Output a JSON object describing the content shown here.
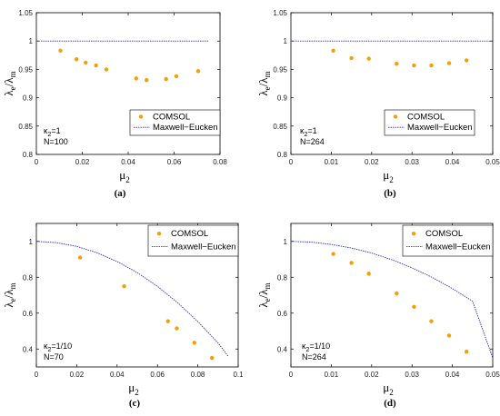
{
  "colors": {
    "comsol": "#F5A000",
    "maxwell": "#2E2ED0",
    "axis": "#000000"
  },
  "chart_data": [
    {
      "type": "scatter",
      "panel_label": "(a)",
      "xlabel": "μ2",
      "ylabel": "λe/λm",
      "xlim": [
        0,
        0.08
      ],
      "ylim": [
        0.8,
        1.05
      ],
      "xticks": [
        0,
        0.02,
        0.04,
        0.06,
        0.08
      ],
      "xtick_labels": [
        "0",
        "0.02",
        "0.04",
        "0.06",
        "0.08"
      ],
      "yticks": [
        0.8,
        0.85,
        0.9,
        0.95,
        1,
        1.05
      ],
      "ytick_labels": [
        "0.8",
        "0.85",
        "0.9",
        "0.95",
        "1",
        "1.05"
      ],
      "legend": {
        "placement": "bottom-right",
        "items": [
          "COMSOL",
          "Maxwell−Eucken"
        ]
      },
      "annotations": [
        {
          "kappa": "κ2=1"
        },
        {
          "text": "N=100"
        }
      ],
      "series": [
        {
          "name": "COMSOL",
          "kind": "points",
          "x": [
            0.0105,
            0.0175,
            0.0215,
            0.026,
            0.0305,
            0.0435,
            0.048,
            0.0565,
            0.061,
            0.0705
          ],
          "y": [
            0.983,
            0.968,
            0.962,
            0.957,
            0.95,
            0.934,
            0.931,
            0.933,
            0.938,
            0.947
          ]
        },
        {
          "name": "Maxwell−Eucken",
          "kind": "line",
          "x": [
            0,
            0.075
          ],
          "y": [
            1.0,
            1.0
          ]
        }
      ]
    },
    {
      "type": "scatter",
      "panel_label": "(b)",
      "xlabel": "μ2",
      "ylabel": "λe/λm",
      "xlim": [
        0,
        0.05
      ],
      "ylim": [
        0.8,
        1.05
      ],
      "xticks": [
        0,
        0.01,
        0.02,
        0.03,
        0.04,
        0.05
      ],
      "xtick_labels": [
        "0",
        "0.01",
        "0.02",
        "0.03",
        "0.04",
        "0.05"
      ],
      "yticks": [
        0.8,
        0.85,
        0.9,
        0.95,
        1,
        1.05
      ],
      "ytick_labels": [
        "0.8",
        "0.85",
        "0.9",
        "0.95",
        "1",
        "1.05"
      ],
      "legend": {
        "placement": "bottom-right",
        "items": [
          "COMSOL",
          "Maxwell−Eucken"
        ]
      },
      "annotations": [
        {
          "kappa": "κ2=1"
        },
        {
          "text": "N=264"
        }
      ],
      "series": [
        {
          "name": "COMSOL",
          "kind": "points",
          "x": [
            0.0105,
            0.015,
            0.0193,
            0.0262,
            0.0305,
            0.0348,
            0.0392,
            0.0435
          ],
          "y": [
            0.983,
            0.97,
            0.969,
            0.96,
            0.957,
            0.957,
            0.961,
            0.966
          ]
        },
        {
          "name": "Maxwell−Eucken",
          "kind": "line",
          "x": [
            0,
            0.05
          ],
          "y": [
            1.0,
            1.0
          ]
        }
      ]
    },
    {
      "type": "scatter",
      "panel_label": "(c)",
      "xlabel": "μ2",
      "ylabel": "λe/λm",
      "xlim": [
        0,
        0.1
      ],
      "ylim": [
        0.3,
        1.1
      ],
      "xticks": [
        0,
        0.02,
        0.04,
        0.06,
        0.08,
        0.1
      ],
      "xtick_labels": [
        "0",
        "0.02",
        "0.04",
        "0.06",
        "0.08",
        "0.1"
      ],
      "yticks": [
        0.4,
        0.6,
        0.8,
        1
      ],
      "ytick_labels": [
        "0.4",
        "0.6",
        "0.8",
        "1"
      ],
      "legend": {
        "placement": "top-right",
        "items": [
          "COMSOL",
          "Maxwell−Eucken"
        ]
      },
      "annotations": [
        {
          "kappa": "κ2=1/10"
        },
        {
          "text": "N=70"
        }
      ],
      "series": [
        {
          "name": "COMSOL",
          "kind": "points",
          "x": [
            0.0217,
            0.0435,
            0.0652,
            0.0696,
            0.0783,
            0.087
          ],
          "y": [
            0.91,
            0.75,
            0.555,
            0.515,
            0.435,
            0.35
          ]
        },
        {
          "name": "Maxwell−Eucken",
          "kind": "line",
          "x": [
            0,
            0.01,
            0.02,
            0.03,
            0.04,
            0.05,
            0.06,
            0.07,
            0.08,
            0.09,
            0.095
          ],
          "y": [
            1.0,
            0.993,
            0.972,
            0.937,
            0.888,
            0.826,
            0.749,
            0.658,
            0.553,
            0.434,
            0.36
          ]
        }
      ]
    },
    {
      "type": "scatter",
      "panel_label": "(d)",
      "xlabel": "μ2",
      "ylabel": "λe/λm",
      "xlim": [
        0,
        0.05
      ],
      "ylim": [
        0.3,
        1.1
      ],
      "xticks": [
        0,
        0.01,
        0.02,
        0.03,
        0.04,
        0.05
      ],
      "xtick_labels": [
        "0",
        "0.01",
        "0.02",
        "0.03",
        "0.04",
        "0.05"
      ],
      "yticks": [
        0.4,
        0.6,
        0.8,
        1
      ],
      "ytick_labels": [
        "0.4",
        "0.6",
        "0.8",
        "1"
      ],
      "legend": {
        "placement": "top-right",
        "items": [
          "COMSOL",
          "Maxwell−Eucken"
        ]
      },
      "annotations": [
        {
          "kappa": "κ2=1/10"
        },
        {
          "text": "N=264"
        }
      ],
      "series": [
        {
          "name": "COMSOL",
          "kind": "points",
          "x": [
            0.0105,
            0.015,
            0.0193,
            0.0262,
            0.0305,
            0.0348,
            0.0392,
            0.0435
          ],
          "y": [
            0.93,
            0.88,
            0.82,
            0.71,
            0.635,
            0.555,
            0.475,
            0.385
          ]
        },
        {
          "name": "Maxwell−Eucken",
          "kind": "line",
          "x": [
            0,
            0.005,
            0.01,
            0.015,
            0.02,
            0.025,
            0.03,
            0.035,
            0.04,
            0.045,
            0.05
          ],
          "y": [
            1.0,
            0.996,
            0.983,
            0.963,
            0.935,
            0.898,
            0.853,
            0.799,
            0.737,
            0.667,
            0.35
          ]
        }
      ]
    }
  ]
}
